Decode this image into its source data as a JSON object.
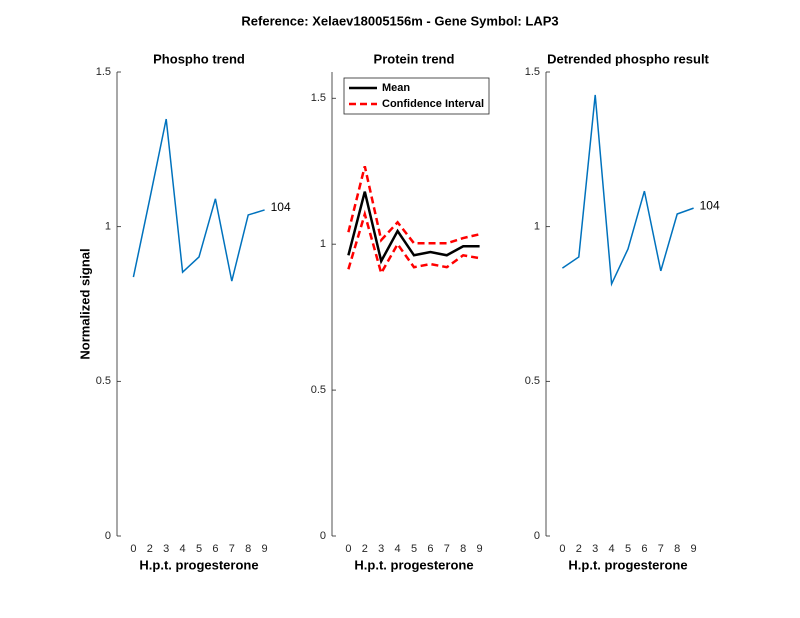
{
  "title": "Reference:  Xelaev18005156m - Gene Symbol:  LAP3",
  "chart_data": [
    {
      "type": "line",
      "title": "Phospho trend",
      "xlabel": "H.p.t. progesterone",
      "ylabel": "Normalized signal",
      "categories": [
        "0",
        "2",
        "3",
        "4",
        "5",
        "6",
        "7",
        "8",
        "9"
      ],
      "series": [
        {
          "color": "#0072bd",
          "style": "solid",
          "values": [
            0.837,
            1.09,
            1.348,
            0.853,
            0.902,
            1.09,
            0.824,
            1.038,
            1.054
          ]
        }
      ],
      "annotation": "104",
      "ylim": [
        0,
        1.5
      ],
      "yticks": [
        0,
        0.5,
        1,
        1.5
      ]
    },
    {
      "type": "line",
      "title": "Protein trend",
      "xlabel": "H.p.t. progesterone",
      "categories": [
        "0",
        "2",
        "3",
        "4",
        "5",
        "6",
        "7",
        "8",
        "9"
      ],
      "series": [
        {
          "name": "Mean",
          "color": "#000000",
          "style": "solid",
          "values": [
            0.962,
            1.18,
            0.942,
            1.045,
            0.962,
            0.973,
            0.962,
            0.993,
            0.993
          ]
        },
        {
          "name": "Confidence Interval",
          "color": "#ff0000",
          "style": "dashed",
          "values": [
            1.041,
            1.267,
            1.014,
            1.075,
            1.003,
            1.003,
            1.003,
            1.021,
            1.034
          ]
        },
        {
          "color": "#ff0000",
          "style": "dashed",
          "values": [
            0.914,
            1.103,
            0.901,
            1.0,
            0.921,
            0.932,
            0.921,
            0.962,
            0.952
          ]
        }
      ],
      "legend": "upper left",
      "ylim": [
        0,
        1.59
      ],
      "yticks": [
        0,
        0.5,
        1,
        1.5
      ]
    },
    {
      "type": "line",
      "title": "Detrended phospho result",
      "xlabel": "H.p.t. progesterone",
      "categories": [
        "0",
        "2",
        "3",
        "4",
        "5",
        "6",
        "7",
        "8",
        "9"
      ],
      "series": [
        {
          "color": "#0072bd",
          "style": "solid",
          "values": [
            0.866,
            0.902,
            1.426,
            0.815,
            0.928,
            1.115,
            0.857,
            1.041,
            1.06
          ]
        }
      ],
      "annotation": "104",
      "ylim": [
        0,
        1.5
      ],
      "yticks": [
        0,
        0.5,
        1,
        1.5
      ]
    }
  ]
}
